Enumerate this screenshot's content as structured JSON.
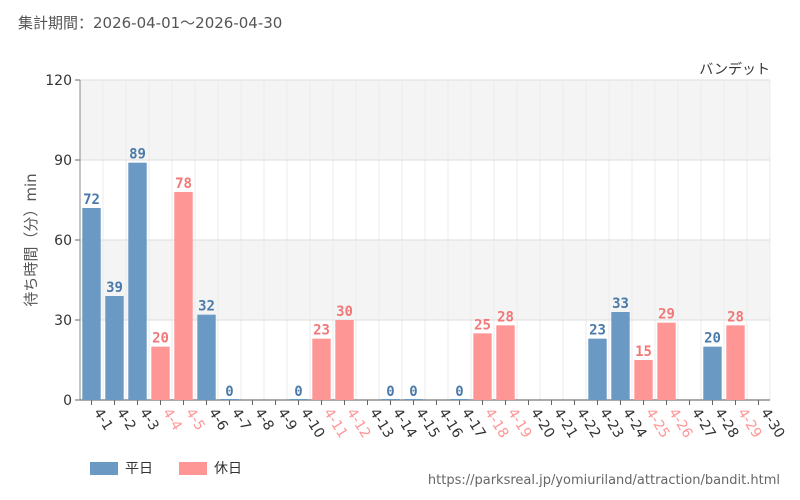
{
  "header": {
    "period": "集計期間：2026-04-01～2026-04-30"
  },
  "source_url": "https://parksreal.jp/yomiuriland/attraction/bandit.html",
  "colors": {
    "weekday": "#6a9ac4",
    "holiday": "#ff9696",
    "weekday_label": "#4a7aaa",
    "holiday_label": "#f07878",
    "band": "#f4f4f4",
    "grid": "#dedede"
  },
  "chart_data": {
    "type": "bar",
    "title": "バンデット",
    "ylabel": "待ち時間（分）min",
    "xlabel": "",
    "ylim": [
      0,
      120
    ],
    "yticks": [
      0,
      30,
      60,
      90,
      120
    ],
    "categories": [
      "4-1",
      "4-2",
      "4-3",
      "4-4",
      "4-5",
      "4-6",
      "4-7",
      "4-8",
      "4-9",
      "4-10",
      "4-11",
      "4-12",
      "4-13",
      "4-14",
      "4-15",
      "4-16",
      "4-17",
      "4-18",
      "4-19",
      "4-20",
      "4-21",
      "4-22",
      "4-23",
      "4-24",
      "4-25",
      "4-26",
      "4-27",
      "4-28",
      "4-29",
      "4-30"
    ],
    "values": [
      72,
      39,
      89,
      20,
      78,
      32,
      0,
      null,
      null,
      0,
      23,
      30,
      null,
      0,
      0,
      null,
      0,
      25,
      28,
      null,
      null,
      null,
      23,
      33,
      15,
      29,
      null,
      20,
      28,
      null
    ],
    "day_type": [
      "weekday",
      "weekday",
      "weekday",
      "holiday",
      "holiday",
      "weekday",
      "weekday",
      "weekday",
      "weekday",
      "weekday",
      "holiday",
      "holiday",
      "weekday",
      "weekday",
      "weekday",
      "weekday",
      "weekday",
      "holiday",
      "holiday",
      "weekday",
      "weekday",
      "weekday",
      "weekday",
      "weekday",
      "holiday",
      "holiday",
      "weekday",
      "weekday",
      "holiday",
      "weekday"
    ],
    "legend": [
      {
        "key": "weekday",
        "label": "平日"
      },
      {
        "key": "holiday",
        "label": "休日"
      }
    ],
    "legend_position": "bottom-left",
    "grid": true
  }
}
